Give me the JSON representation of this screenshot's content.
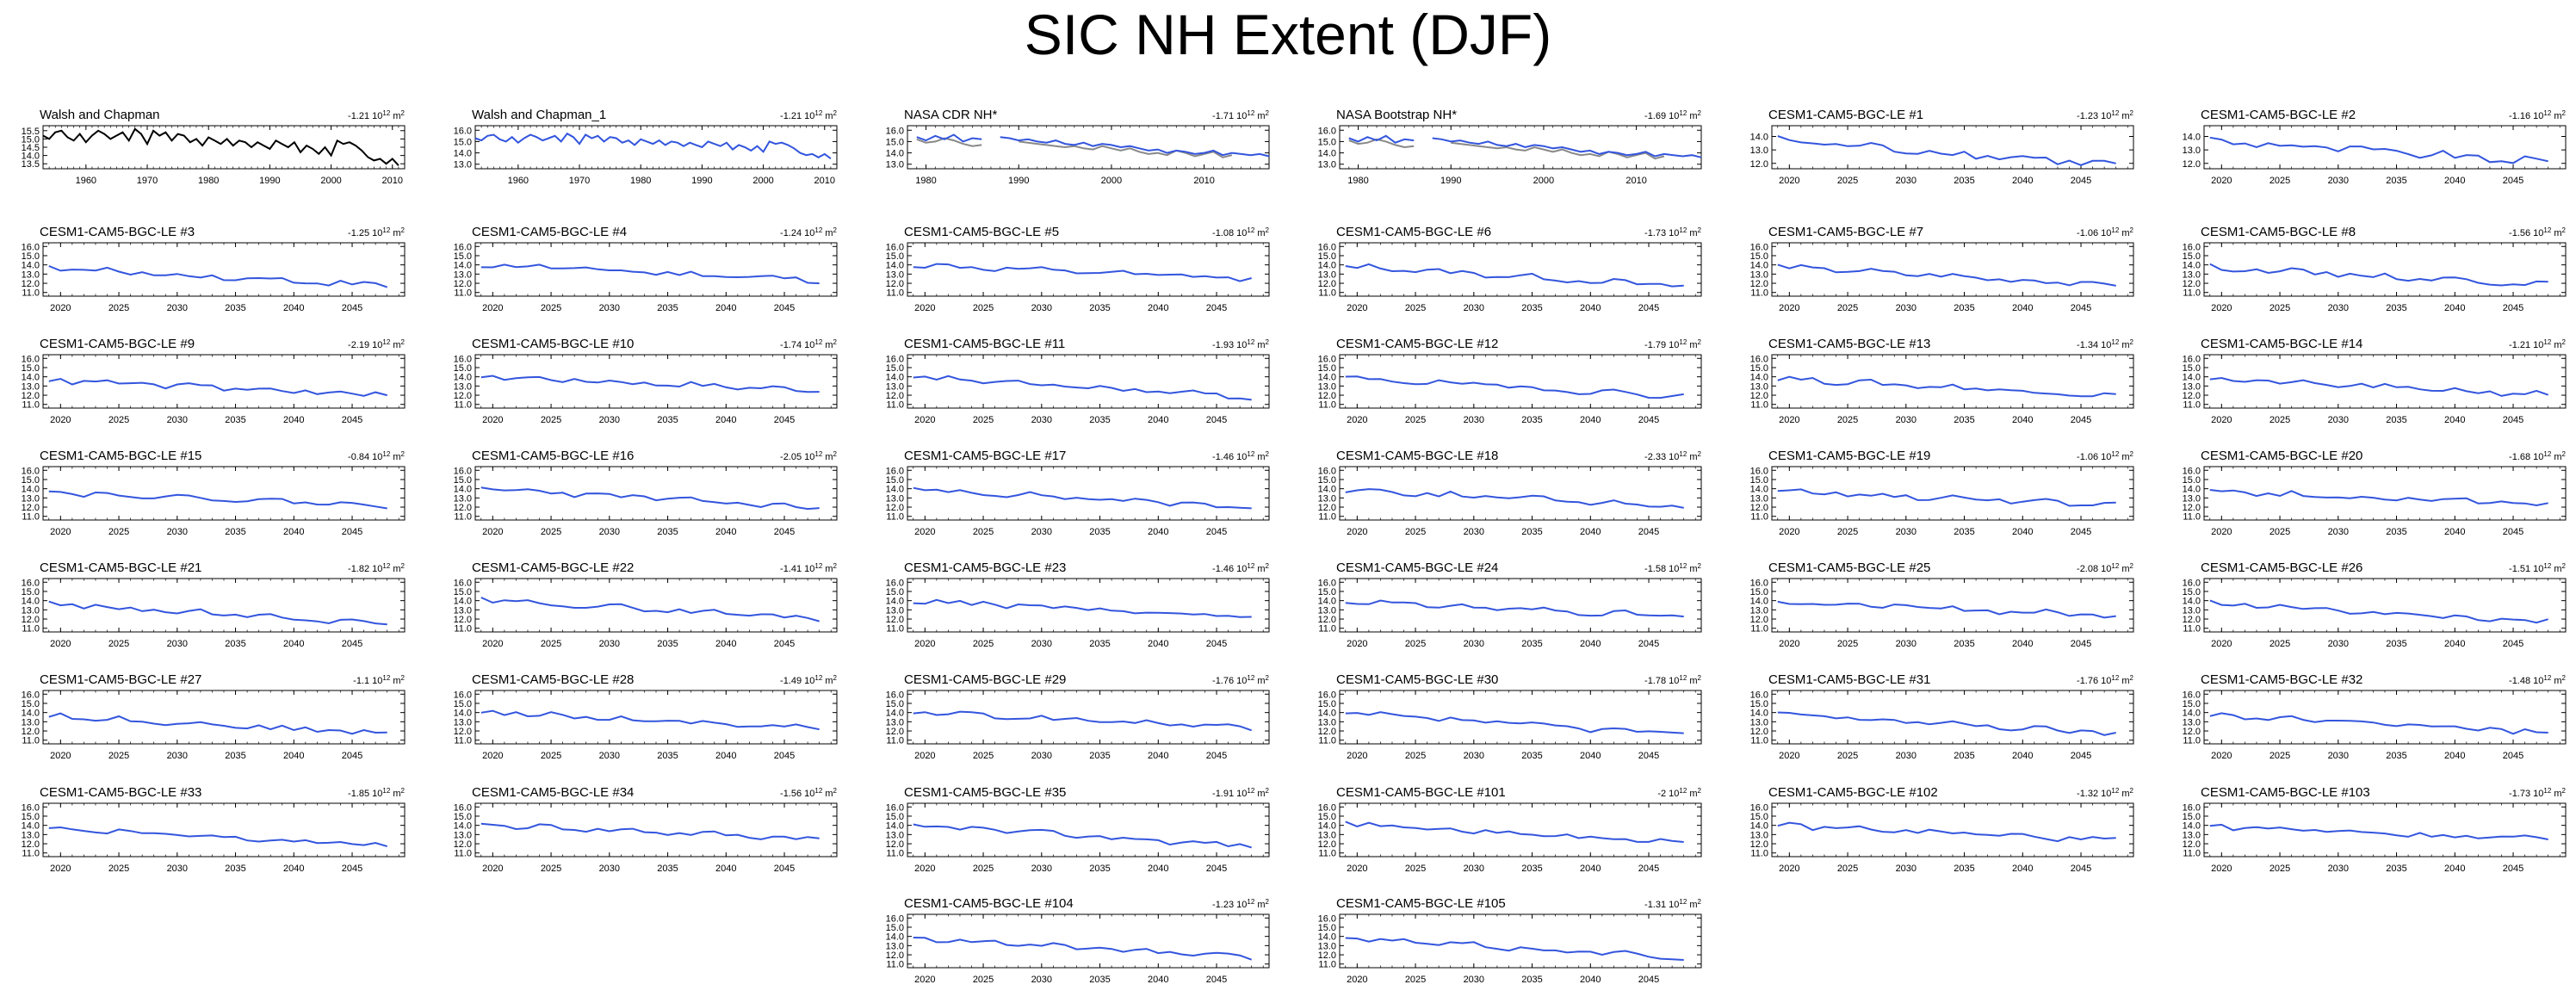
{
  "title": "SIC NH Extent (DJF)",
  "colors": {
    "obs": "#000000",
    "model": "#3355dd",
    "obs_secondary": "#888888",
    "axis": "#000000"
  },
  "chart_data": [
    {
      "type": "line",
      "title": "Walsh and Chapman",
      "trend_label": "-1.21 10",
      "trend_unit": "12",
      "trend_suffix": " m",
      "trend_power": "2",
      "xlim": [
        1953,
        2012
      ],
      "xticks": [
        1960,
        1970,
        1980,
        1990,
        2000,
        2010
      ],
      "ylim": [
        13.2,
        15.8
      ],
      "yticks": [
        13.5,
        14.0,
        14.5,
        15.0,
        15.5
      ],
      "series": [
        {
          "name": "obs",
          "color": "obs",
          "x_start": 1953,
          "values": [
            15.2,
            15.0,
            15.4,
            15.5,
            15.1,
            14.9,
            15.3,
            14.8,
            15.2,
            15.5,
            15.3,
            15.0,
            15.2,
            15.4,
            14.9,
            15.6,
            15.3,
            14.7,
            15.5,
            15.2,
            15.4,
            14.9,
            15.3,
            15.2,
            14.8,
            15.0,
            14.6,
            15.1,
            14.9,
            14.7,
            15.0,
            14.6,
            14.9,
            14.8,
            14.5,
            14.8,
            14.6,
            14.4,
            14.9,
            14.7,
            14.5,
            14.8,
            14.2,
            14.6,
            14.4,
            14.1,
            14.5,
            14.0,
            14.9,
            14.7,
            14.8,
            14.6,
            14.3,
            13.9,
            13.7,
            13.8,
            13.5,
            13.8,
            13.4
          ]
        }
      ]
    },
    {
      "type": "line",
      "title": "Walsh and Chapman_1",
      "trend_label": "-1.21 10",
      "trend_unit": "12",
      "trend_suffix": " m",
      "trend_power": "2",
      "xlim": [
        1953,
        2012
      ],
      "xticks": [
        1960,
        1970,
        1980,
        1990,
        2000,
        2010
      ],
      "ylim": [
        12.6,
        16.4
      ],
      "yticks": [
        13.0,
        14.0,
        15.0,
        16.0
      ],
      "series": [
        {
          "name": "model",
          "color": "model",
          "x_start": 1953,
          "values": [
            15.3,
            15.1,
            15.5,
            15.6,
            15.2,
            15.0,
            15.4,
            14.9,
            15.3,
            15.6,
            15.4,
            15.1,
            15.3,
            15.5,
            15.0,
            15.7,
            15.4,
            14.8,
            15.6,
            15.3,
            15.5,
            15.0,
            15.4,
            15.3,
            14.9,
            15.1,
            14.7,
            15.2,
            15.0,
            14.8,
            15.1,
            14.7,
            15.0,
            14.9,
            14.6,
            14.9,
            14.7,
            14.5,
            15.0,
            14.8,
            14.6,
            14.9,
            14.3,
            14.7,
            14.5,
            14.2,
            14.6,
            14.1,
            15.0,
            14.8,
            14.9,
            14.7,
            14.4,
            14.0,
            13.8,
            13.9,
            13.6,
            13.9,
            13.5
          ]
        }
      ]
    },
    {
      "type": "line",
      "title": "NASA CDR NH*",
      "trend_label": "-1.71 10",
      "trend_unit": "12",
      "trend_suffix": " m",
      "trend_power": "2",
      "xlim": [
        1978,
        2017
      ],
      "xticks": [
        1980,
        1990,
        2000,
        2010
      ],
      "ylim": [
        12.6,
        16.4
      ],
      "yticks": [
        13.0,
        14.0,
        15.0,
        16.0
      ],
      "series": [
        {
          "name": "obs_secondary",
          "color": "obs_secondary",
          "x_start": 1979,
          "values": [
            15.2,
            14.9,
            15.0,
            15.3,
            15.1,
            14.8,
            14.6,
            14.7,
            null,
            null,
            null,
            15.0,
            14.9,
            14.8,
            14.7,
            14.6,
            14.5,
            14.6,
            14.4,
            14.3,
            14.6,
            14.4,
            14.2,
            14.4,
            14.1,
            13.9,
            14.0,
            13.8,
            14.2,
            14.0,
            13.7,
            13.9,
            14.1,
            13.6,
            13.8,
            null,
            null,
            null,
            null
          ]
        },
        {
          "name": "model",
          "color": "model",
          "x_start": 1979,
          "values": [
            15.4,
            15.1,
            15.5,
            15.2,
            15.6,
            15.0,
            15.3,
            15.2,
            null,
            15.4,
            15.3,
            15.1,
            15.2,
            15.0,
            14.9,
            15.1,
            14.8,
            14.7,
            14.9,
            14.6,
            14.8,
            14.7,
            14.5,
            14.6,
            14.4,
            14.2,
            14.3,
            14.0,
            14.2,
            14.1,
            13.9,
            14.0,
            14.2,
            13.8,
            14.0,
            13.9,
            13.8,
            13.9,
            13.7
          ]
        }
      ]
    },
    {
      "type": "line",
      "title": "NASA Bootstrap NH*",
      "trend_label": "-1.69 10",
      "trend_unit": "12",
      "trend_suffix": " m",
      "trend_power": "2",
      "xlim": [
        1978,
        2017
      ],
      "xticks": [
        1980,
        1990,
        2000,
        2010
      ],
      "ylim": [
        12.6,
        16.4
      ],
      "yticks": [
        13.0,
        14.0,
        15.0,
        16.0
      ],
      "series": [
        {
          "name": "obs_secondary",
          "color": "obs_secondary",
          "x_start": 1979,
          "values": [
            15.1,
            14.8,
            14.9,
            15.2,
            15.0,
            14.7,
            14.5,
            14.6,
            null,
            null,
            null,
            14.9,
            14.8,
            14.7,
            14.6,
            14.5,
            14.4,
            14.5,
            14.3,
            14.2,
            14.5,
            14.3,
            14.1,
            14.3,
            14.0,
            13.8,
            13.9,
            13.7,
            14.1,
            13.9,
            13.6,
            13.8,
            14.0,
            13.5,
            13.7,
            null,
            null,
            null,
            null
          ]
        },
        {
          "name": "model",
          "color": "model",
          "x_start": 1979,
          "values": [
            15.3,
            15.0,
            15.4,
            15.1,
            15.5,
            14.9,
            15.2,
            15.1,
            null,
            15.3,
            15.2,
            15.0,
            15.1,
            14.9,
            14.8,
            15.0,
            14.7,
            14.6,
            14.8,
            14.5,
            14.7,
            14.6,
            14.4,
            14.5,
            14.3,
            14.1,
            14.2,
            13.9,
            14.1,
            14.0,
            13.8,
            13.9,
            14.1,
            13.7,
            13.9,
            13.8,
            13.7,
            13.8,
            13.6
          ]
        }
      ]
    },
    {
      "type": "line",
      "title": "CESM1-CAM5-BGC-LE #1",
      "trend_label": "-1.23 10",
      "trend_unit": "12",
      "trend_suffix": " m",
      "trend_power": "2",
      "ens": 1
    },
    {
      "type": "line",
      "title": "CESM1-CAM5-BGC-LE #2",
      "trend_label": "-1.16 10",
      "trend_unit": "12",
      "trend_suffix": " m",
      "trend_power": "2",
      "ens": 2
    },
    {
      "type": "line",
      "title": "CESM1-CAM5-BGC-LE #3",
      "trend_label": "-1.25 10",
      "trend_unit": "12",
      "trend_suffix": " m",
      "trend_power": "2",
      "ens": 3
    },
    {
      "type": "line",
      "title": "CESM1-CAM5-BGC-LE #4",
      "trend_label": "-1.24 10",
      "trend_unit": "12",
      "trend_suffix": " m",
      "trend_power": "2",
      "ens": 4
    },
    {
      "type": "line",
      "title": "CESM1-CAM5-BGC-LE #5",
      "trend_label": "-1.08 10",
      "trend_unit": "12",
      "trend_suffix": " m",
      "trend_power": "2",
      "ens": 5
    },
    {
      "type": "line",
      "title": "CESM1-CAM5-BGC-LE #6",
      "trend_label": "-1.73 10",
      "trend_unit": "12",
      "trend_suffix": " m",
      "trend_power": "2",
      "ens": 6
    },
    {
      "type": "line",
      "title": "CESM1-CAM5-BGC-LE #7",
      "trend_label": "-1.06 10",
      "trend_unit": "12",
      "trend_suffix": " m",
      "trend_power": "2",
      "ens": 7
    },
    {
      "type": "line",
      "title": "CESM1-CAM5-BGC-LE #8",
      "trend_label": "-1.56 10",
      "trend_unit": "12",
      "trend_suffix": " m",
      "trend_power": "2",
      "ens": 8
    },
    {
      "type": "line",
      "title": "CESM1-CAM5-BGC-LE #9",
      "trend_label": "-2.19 10",
      "trend_unit": "12",
      "trend_suffix": " m",
      "trend_power": "2",
      "ens": 9
    },
    {
      "type": "line",
      "title": "CESM1-CAM5-BGC-LE #10",
      "trend_label": "-1.74 10",
      "trend_unit": "12",
      "trend_suffix": " m",
      "trend_power": "2",
      "ens": 10
    },
    {
      "type": "line",
      "title": "CESM1-CAM5-BGC-LE #11",
      "trend_label": "-1.93 10",
      "trend_unit": "12",
      "trend_suffix": " m",
      "trend_power": "2",
      "ens": 11
    },
    {
      "type": "line",
      "title": "CESM1-CAM5-BGC-LE #12",
      "trend_label": "-1.79 10",
      "trend_unit": "12",
      "trend_suffix": " m",
      "trend_power": "2",
      "ens": 12
    },
    {
      "type": "line",
      "title": "CESM1-CAM5-BGC-LE #13",
      "trend_label": "-1.34 10",
      "trend_unit": "12",
      "trend_suffix": " m",
      "trend_power": "2",
      "ens": 13
    },
    {
      "type": "line",
      "title": "CESM1-CAM5-BGC-LE #14",
      "trend_label": "-1.21 10",
      "trend_unit": "12",
      "trend_suffix": " m",
      "trend_power": "2",
      "ens": 14
    },
    {
      "type": "line",
      "title": "CESM1-CAM5-BGC-LE #15",
      "trend_label": "-0.84 10",
      "trend_unit": "12",
      "trend_suffix": " m",
      "trend_power": "2",
      "ens": 15
    },
    {
      "type": "line",
      "title": "CESM1-CAM5-BGC-LE #16",
      "trend_label": "-2.05 10",
      "trend_unit": "12",
      "trend_suffix": " m",
      "trend_power": "2",
      "ens": 16
    },
    {
      "type": "line",
      "title": "CESM1-CAM5-BGC-LE #17",
      "trend_label": "-1.46 10",
      "trend_unit": "12",
      "trend_suffix": " m",
      "trend_power": "2",
      "ens": 17
    },
    {
      "type": "line",
      "title": "CESM1-CAM5-BGC-LE #18",
      "trend_label": "-2.33 10",
      "trend_unit": "12",
      "trend_suffix": " m",
      "trend_power": "2",
      "ens": 18
    },
    {
      "type": "line",
      "title": "CESM1-CAM5-BGC-LE #19",
      "trend_label": "-1.06 10",
      "trend_unit": "12",
      "trend_suffix": " m",
      "trend_power": "2",
      "ens": 19
    },
    {
      "type": "line",
      "title": "CESM1-CAM5-BGC-LE #20",
      "trend_label": "-1.68 10",
      "trend_unit": "12",
      "trend_suffix": " m",
      "trend_power": "2",
      "ens": 20
    },
    {
      "type": "line",
      "title": "CESM1-CAM5-BGC-LE #21",
      "trend_label": "-1.82 10",
      "trend_unit": "12",
      "trend_suffix": " m",
      "trend_power": "2",
      "ens": 21
    },
    {
      "type": "line",
      "title": "CESM1-CAM5-BGC-LE #22",
      "trend_label": "-1.41 10",
      "trend_unit": "12",
      "trend_suffix": " m",
      "trend_power": "2",
      "ens": 22
    },
    {
      "type": "line",
      "title": "CESM1-CAM5-BGC-LE #23",
      "trend_label": "-1.46 10",
      "trend_unit": "12",
      "trend_suffix": " m",
      "trend_power": "2",
      "ens": 23
    },
    {
      "type": "line",
      "title": "CESM1-CAM5-BGC-LE #24",
      "trend_label": "-1.58 10",
      "trend_unit": "12",
      "trend_suffix": " m",
      "trend_power": "2",
      "ens": 24
    },
    {
      "type": "line",
      "title": "CESM1-CAM5-BGC-LE #25",
      "trend_label": "-2.08 10",
      "trend_unit": "12",
      "trend_suffix": " m",
      "trend_power": "2",
      "ens": 25
    },
    {
      "type": "line",
      "title": "CESM1-CAM5-BGC-LE #26",
      "trend_label": "-1.51 10",
      "trend_unit": "12",
      "trend_suffix": " m",
      "trend_power": "2",
      "ens": 26
    },
    {
      "type": "line",
      "title": "CESM1-CAM5-BGC-LE #27",
      "trend_label": "-1.1 10",
      "trend_unit": "12",
      "trend_suffix": " m",
      "trend_power": "2",
      "ens": 27
    },
    {
      "type": "line",
      "title": "CESM1-CAM5-BGC-LE #28",
      "trend_label": "-1.49 10",
      "trend_unit": "12",
      "trend_suffix": " m",
      "trend_power": "2",
      "ens": 28
    },
    {
      "type": "line",
      "title": "CESM1-CAM5-BGC-LE #29",
      "trend_label": "-1.76 10",
      "trend_unit": "12",
      "trend_suffix": " m",
      "trend_power": "2",
      "ens": 29
    },
    {
      "type": "line",
      "title": "CESM1-CAM5-BGC-LE #30",
      "trend_label": "-1.78 10",
      "trend_unit": "12",
      "trend_suffix": " m",
      "trend_power": "2",
      "ens": 30
    },
    {
      "type": "line",
      "title": "CESM1-CAM5-BGC-LE #31",
      "trend_label": "-1.76 10",
      "trend_unit": "12",
      "trend_suffix": " m",
      "trend_power": "2",
      "ens": 31
    },
    {
      "type": "line",
      "title": "CESM1-CAM5-BGC-LE #32",
      "trend_label": "-1.48 10",
      "trend_unit": "12",
      "trend_suffix": " m",
      "trend_power": "2",
      "ens": 32
    },
    {
      "type": "line",
      "title": "CESM1-CAM5-BGC-LE #33",
      "trend_label": "-1.85 10",
      "trend_unit": "12",
      "trend_suffix": " m",
      "trend_power": "2",
      "ens": 33
    },
    {
      "type": "line",
      "title": "CESM1-CAM5-BGC-LE #34",
      "trend_label": "-1.56 10",
      "trend_unit": "12",
      "trend_suffix": " m",
      "trend_power": "2",
      "ens": 34
    },
    {
      "type": "line",
      "title": "CESM1-CAM5-BGC-LE #35",
      "trend_label": "-1.91 10",
      "trend_unit": "12",
      "trend_suffix": " m",
      "trend_power": "2",
      "ens": 35
    },
    {
      "type": "line",
      "title": "CESM1-CAM5-BGC-LE #101",
      "trend_label": "-2 10",
      "trend_unit": "12",
      "trend_suffix": " m",
      "trend_power": "2",
      "ens": 101
    },
    {
      "type": "line",
      "title": "CESM1-CAM5-BGC-LE #102",
      "trend_label": "-1.32 10",
      "trend_unit": "12",
      "trend_suffix": " m",
      "trend_power": "2",
      "ens": 102
    },
    {
      "type": "line",
      "title": "CESM1-CAM5-BGC-LE #103",
      "trend_label": "-1.73 10",
      "trend_unit": "12",
      "trend_suffix": " m",
      "trend_power": "2",
      "ens": 103
    },
    {
      "type": "line",
      "title": "CESM1-CAM5-BGC-LE #104",
      "trend_label": "-1.23 10",
      "trend_unit": "12",
      "trend_suffix": " m",
      "trend_power": "2",
      "ens": 104
    },
    {
      "type": "line",
      "title": "CESM1-CAM5-BGC-LE #105",
      "trend_label": "-1.31 10",
      "trend_unit": "12",
      "trend_suffix": " m",
      "trend_power": "2",
      "ens": 105
    }
  ],
  "ensemble_axes": {
    "xlim": [
      2018.5,
      2049.5
    ],
    "xticks": [
      2020,
      2025,
      2030,
      2035,
      2040,
      2045
    ],
    "first_row_ylim": [
      11.6,
      14.8
    ],
    "first_row_yticks": [
      12.0,
      13.0,
      14.0
    ],
    "ylim": [
      10.6,
      16.4
    ],
    "yticks": [
      11.0,
      12.0,
      13.0,
      14.0,
      15.0,
      16.0
    ],
    "x_start": 2019,
    "n_years": 30
  }
}
